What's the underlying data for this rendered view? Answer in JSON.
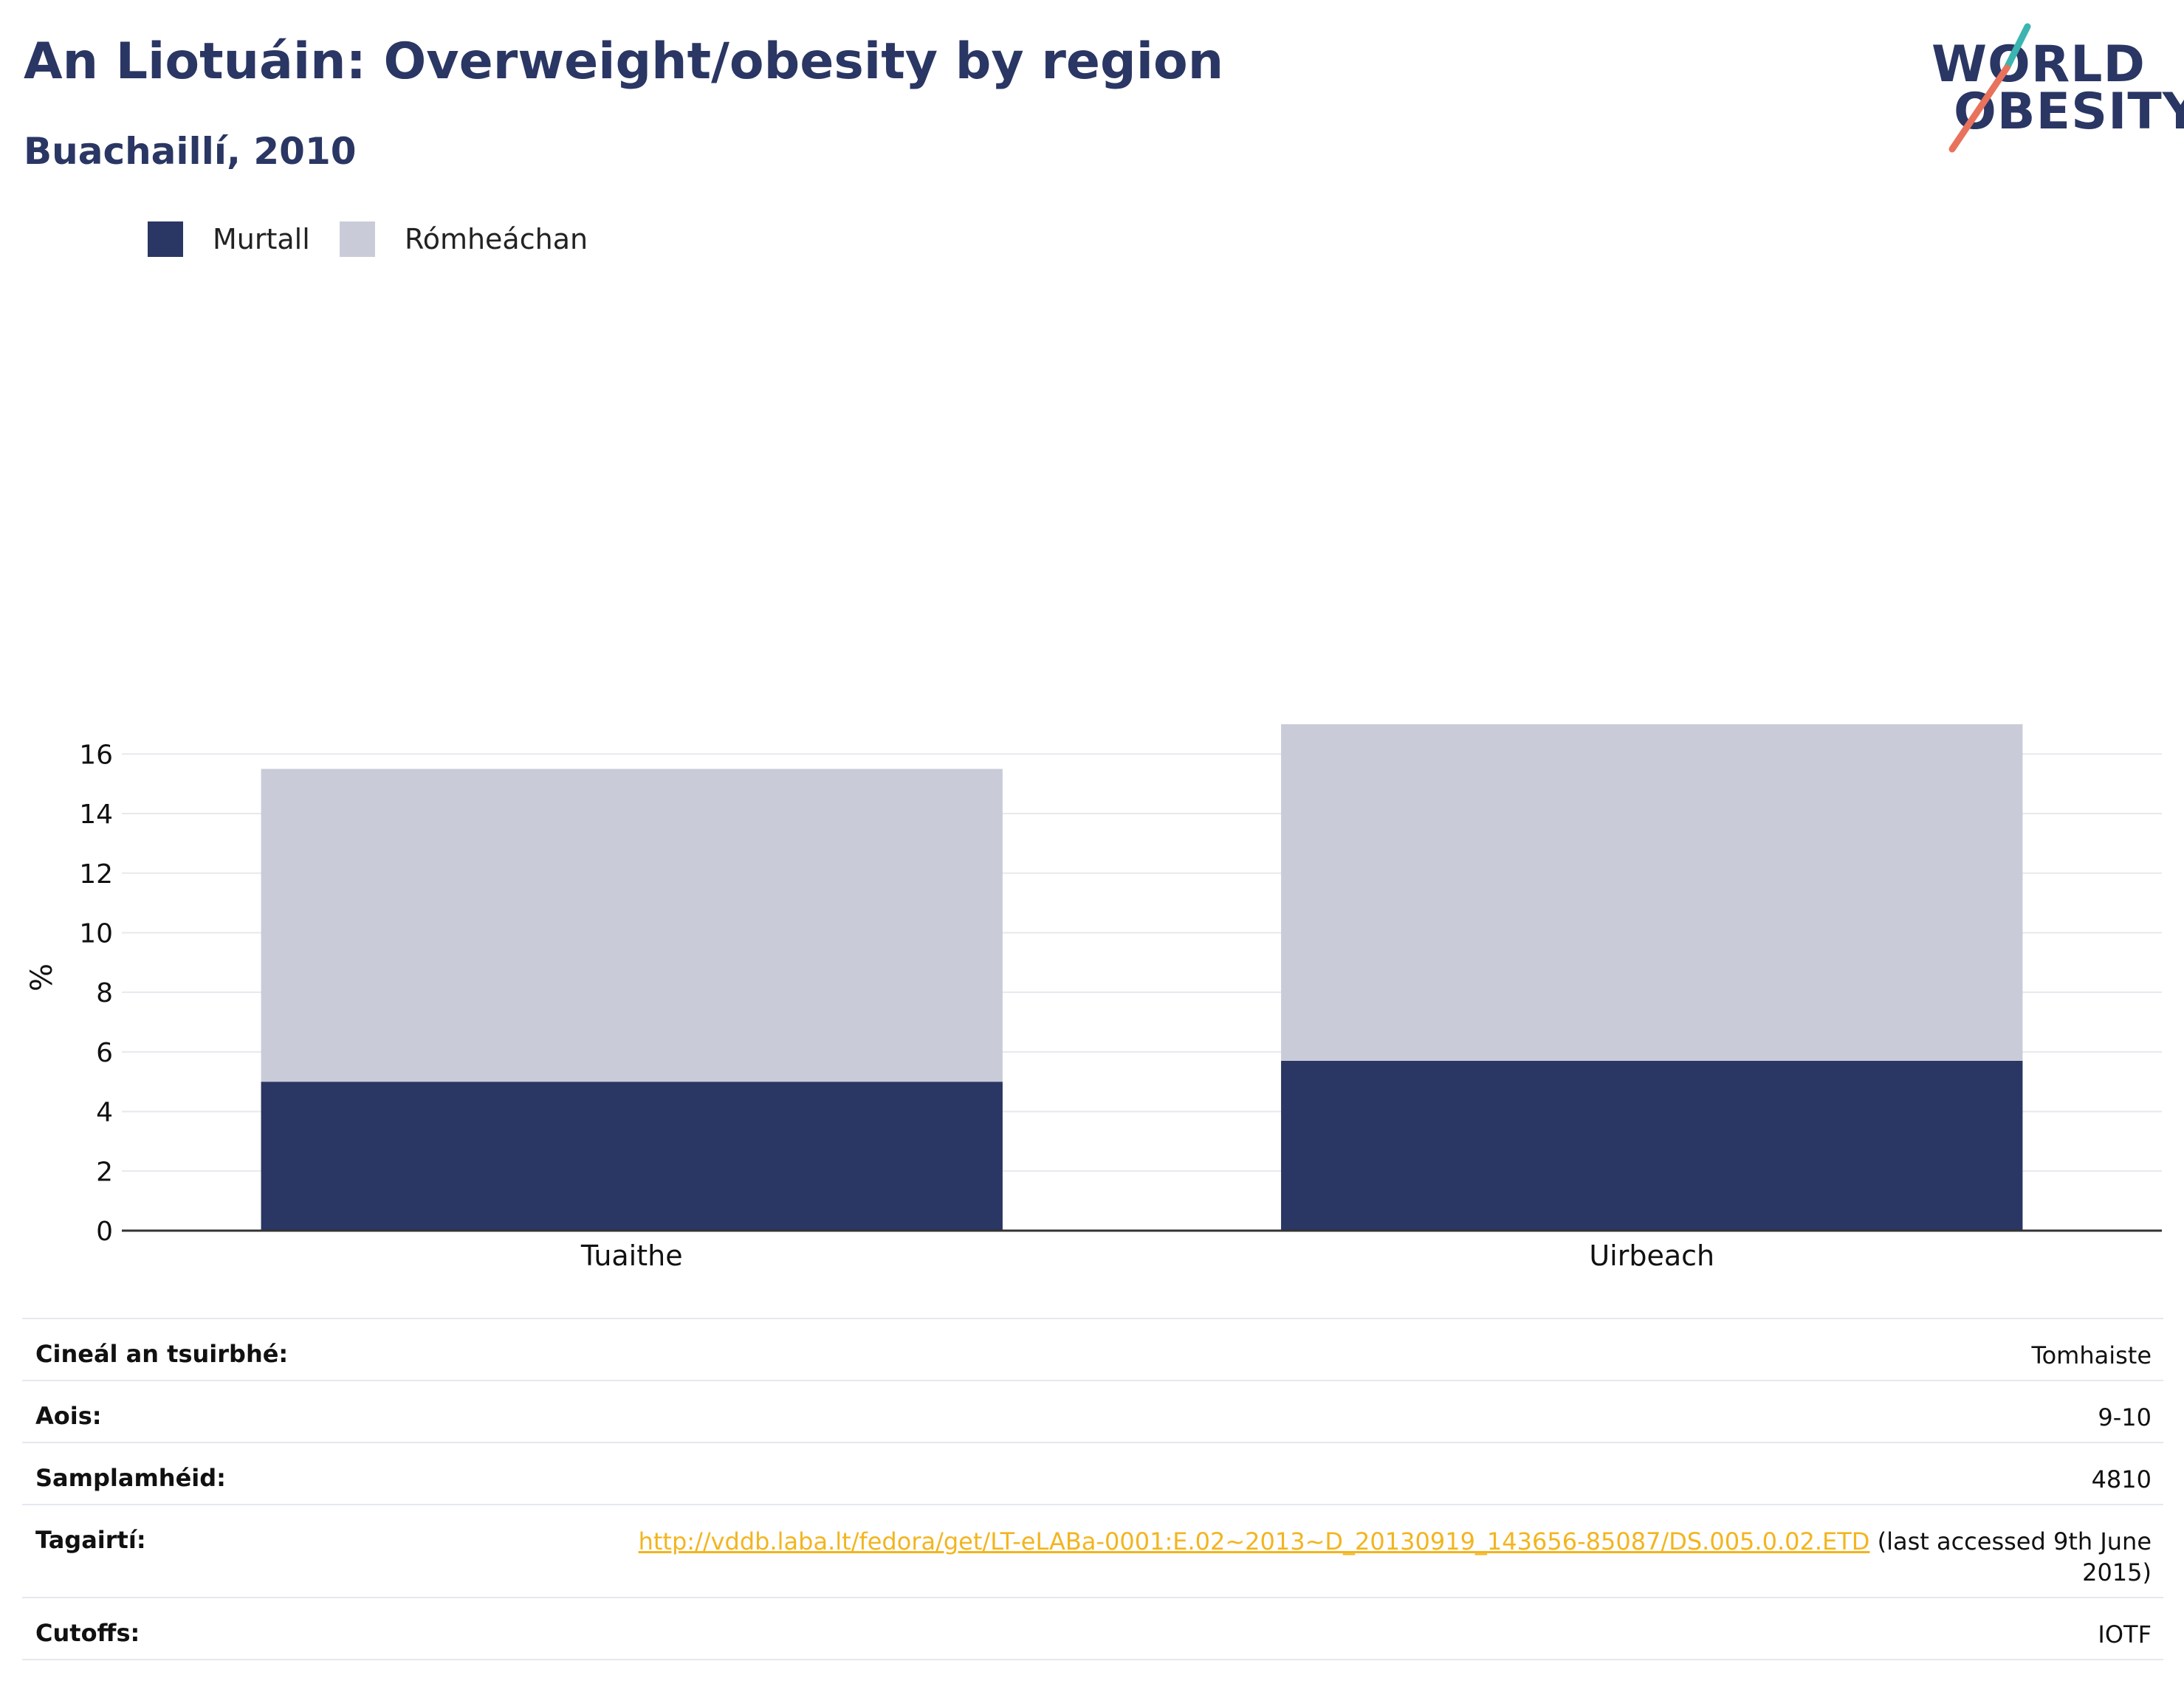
{
  "title": "An Liotuáin: Overweight/obesity by region",
  "subtitle": "Buachaillí, 2010",
  "logo": {
    "line1": "WORLD",
    "line2": "OBESITY"
  },
  "colors": {
    "obese": "#2a3663",
    "overweight": "#c9ccd8",
    "accent_teal": "#3cb5b0",
    "accent_coral": "#e8725c",
    "link": "#f2b51f"
  },
  "legend": [
    {
      "label": "Murtall",
      "color": "#2a3663"
    },
    {
      "label": "Rómheáchan",
      "color": "#c9ccd8"
    }
  ],
  "chart_data": {
    "type": "bar",
    "stacked": true,
    "categories": [
      "Tuaithe",
      "Uirbeach"
    ],
    "series": [
      {
        "name": "Murtall",
        "values": [
          5.0,
          5.7
        ]
      },
      {
        "name": "Rómheáchan",
        "values": [
          10.5,
          11.3
        ]
      }
    ],
    "ylabel": "%",
    "ylim": [
      0,
      17
    ],
    "yticks": [
      0,
      2,
      4,
      6,
      8,
      10,
      12,
      14,
      16
    ],
    "grid": true,
    "legend_position": "top-left"
  },
  "info": {
    "survey_type_label": "Cineál an tsuirbhé:",
    "survey_type_value": "Tomhaiste",
    "age_label": "Aois:",
    "age_value": "9-10",
    "sample_label": "Samplamhéid:",
    "sample_value": "4810",
    "ref_label": "Tagairtí:",
    "ref_link": "http://vddb.laba.lt/fedora/get/LT-eLABa-0001:E.02~2013~D_20130919_143656-85087/DS.005.0.02.ETD",
    "ref_note": " (last accessed 9th June 2015)",
    "cutoffs_label": "Cutoffs:",
    "cutoffs_value": "IOTF"
  }
}
